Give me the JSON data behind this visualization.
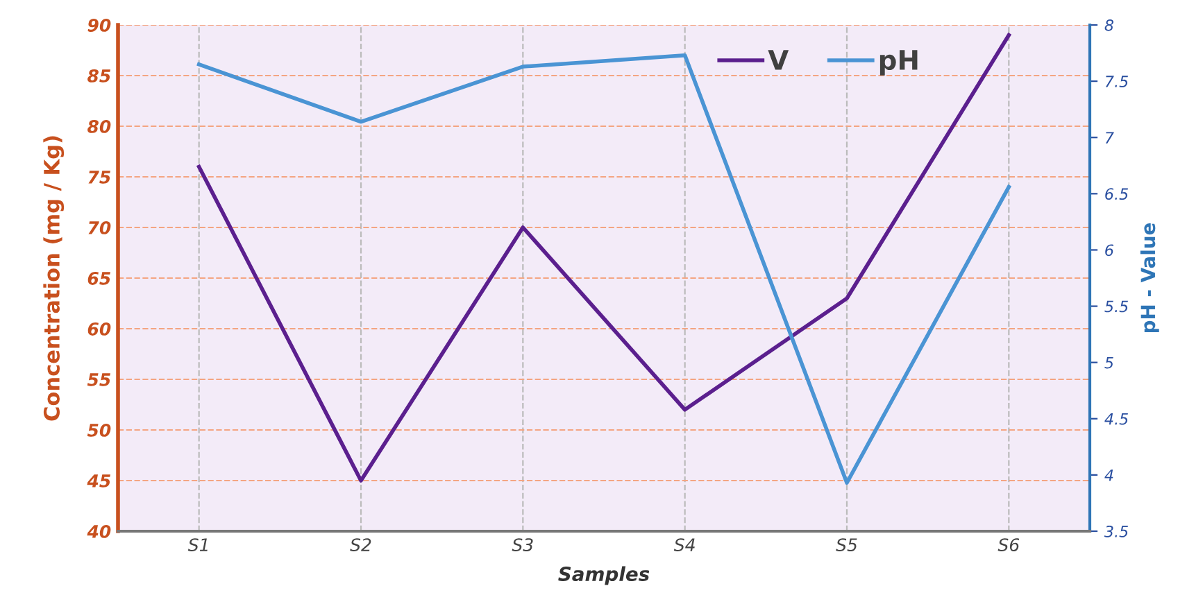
{
  "chart_data": {
    "type": "line",
    "xlabel": "Samples",
    "ylabel": "Concentration (mg / Kg)",
    "y2label": "pH - Value",
    "categories": [
      "S1",
      "S2",
      "S3",
      "S4",
      "S5",
      "S6"
    ],
    "series": [
      {
        "name": "V",
        "color": "#5b1f8e",
        "values": [
          76,
          45,
          70,
          52,
          63,
          89
        ]
      },
      {
        "name": "pH",
        "color": "#4a94d4",
        "axis": "y2",
        "values": [
          7.65,
          7.14,
          7.63,
          7.73,
          3.93,
          6.56
        ]
      }
    ],
    "ylim": [
      40,
      90
    ],
    "yticks": [
      40,
      45,
      50,
      55,
      60,
      65,
      70,
      75,
      80,
      85,
      90
    ],
    "y2lim": [
      3.5,
      8
    ],
    "y2ticks": [
      3.5,
      4,
      4.5,
      5,
      5.5,
      6,
      6.5,
      7,
      7.5,
      8
    ],
    "grid": true,
    "legend": "top right",
    "marker": "none",
    "line_style": "solid"
  }
}
